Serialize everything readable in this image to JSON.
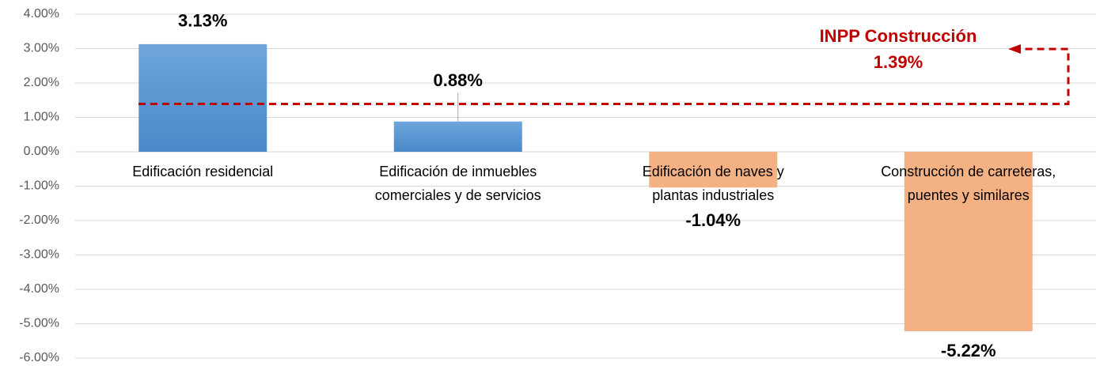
{
  "chart_data": {
    "type": "bar",
    "categories": [
      "Edificación residencial",
      "Edificación de inmuebles\ncomerciales y de servicios",
      "Edificación de naves y\nplantas industriales",
      "Construcción de carreteras,\npuentes y similares"
    ],
    "values": [
      3.13,
      0.88,
      -1.04,
      -5.22
    ],
    "value_labels": [
      "3.13%",
      "0.88%",
      "-1.04%",
      "-5.22%"
    ],
    "colors": [
      "#5b9bd5",
      "#5b9bd5",
      "#f4b183",
      "#f4b183"
    ],
    "ylim": [
      -6,
      4
    ],
    "yticks": [
      {
        "value": -6,
        "label": "-6.00%"
      },
      {
        "value": -5,
        "label": "-5.00%"
      },
      {
        "value": -4,
        "label": "-4.00%"
      },
      {
        "value": -3,
        "label": "-3.00%"
      },
      {
        "value": -2,
        "label": "-2.00%"
      },
      {
        "value": -1,
        "label": "-1.00%"
      },
      {
        "value": 0,
        "label": "0.00%"
      },
      {
        "value": 1,
        "label": "1.00%"
      },
      {
        "value": 2,
        "label": "2.00%"
      },
      {
        "value": 3,
        "label": "3.00%"
      },
      {
        "value": 4,
        "label": "4.00%"
      }
    ],
    "grid": true,
    "reference": {
      "label": "INPP Construcción",
      "value": 1.39,
      "value_label": "1.39%",
      "color": "#c00000"
    }
  }
}
